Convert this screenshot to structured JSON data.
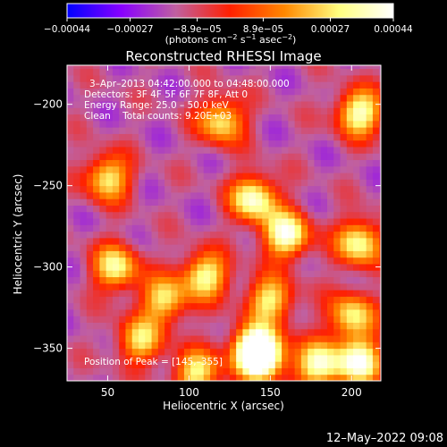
{
  "chart_data": {
    "type": "heatmap",
    "title": "Reconstructed RHESSI Image",
    "xlabel": "Heliocentric X (arcsec)",
    "ylabel": "Heliocentric Y (arcsec)",
    "xlim": [
      25,
      218
    ],
    "ylim": [
      -370,
      -176
    ],
    "x_ticks": [
      50,
      100,
      150,
      200
    ],
    "x_tick_labels": [
      "50",
      "100",
      "150",
      "200"
    ],
    "y_ticks": [
      -200,
      -250,
      -300,
      -350
    ],
    "y_tick_labels": [
      "−200",
      "−250",
      "−300",
      "−350"
    ],
    "colorbar": {
      "min": -0.00044,
      "max": 0.00044,
      "tick_values": [
        -0.00044,
        -0.00027,
        -8.9e-05,
        8.9e-05,
        0.00027,
        0.00044
      ],
      "tick_labels": [
        "−0.00044",
        "−0.00027",
        "−8.9e−05",
        "8.9e−05",
        "0.00027",
        "0.00044"
      ],
      "units_parts": [
        "(photons cm",
        "−2",
        " s",
        "−1",
        " asec",
        "−2",
        ")"
      ],
      "colors": [
        "#0000ff",
        "#8800ff",
        "#c060a0",
        "#ff2000",
        "#ff8800",
        "#ffff80",
        "#ffffff"
      ]
    },
    "annotations": [
      "3–Apr–2013 04:42:00.000 to 04:48:00.000",
      "Detectors: 3F 4F 5F 6F 7F 8F, Att 0",
      "Energy Range: 25.0 – 50.0 keV",
      "Clean    Total counts: 9.20E+03"
    ],
    "peak_label": "Position of Peak = [145,–355]",
    "peak_position": [
      145,
      -355
    ],
    "bright_regions": [
      {
        "x": 205,
        "y": -205,
        "intensity": 0.00038
      },
      {
        "x": 120,
        "y": -210,
        "intensity": 0.0003
      },
      {
        "x": 50,
        "y": -245,
        "intensity": 0.0003
      },
      {
        "x": 140,
        "y": -258,
        "intensity": 0.0004
      },
      {
        "x": 160,
        "y": -280,
        "intensity": 0.00042
      },
      {
        "x": 205,
        "y": -285,
        "intensity": 0.00035
      },
      {
        "x": 55,
        "y": -300,
        "intensity": 0.00032
      },
      {
        "x": 110,
        "y": -305,
        "intensity": 0.00034
      },
      {
        "x": 150,
        "y": -320,
        "intensity": 0.0003
      },
      {
        "x": 85,
        "y": -320,
        "intensity": 0.00028
      },
      {
        "x": 200,
        "y": -330,
        "intensity": 0.0003
      },
      {
        "x": 70,
        "y": -345,
        "intensity": 0.00026
      },
      {
        "x": 140,
        "y": -350,
        "intensity": 0.00036
      },
      {
        "x": 145,
        "y": -355,
        "intensity": 0.00044
      },
      {
        "x": 180,
        "y": -360,
        "intensity": 0.00038
      },
      {
        "x": 205,
        "y": -358,
        "intensity": 0.0004
      },
      {
        "x": 105,
        "y": -365,
        "intensity": 0.0003
      }
    ],
    "background_level": -0.00015,
    "grid": false
  },
  "footer": {
    "timestamp": "12–May–2022 09:08"
  }
}
